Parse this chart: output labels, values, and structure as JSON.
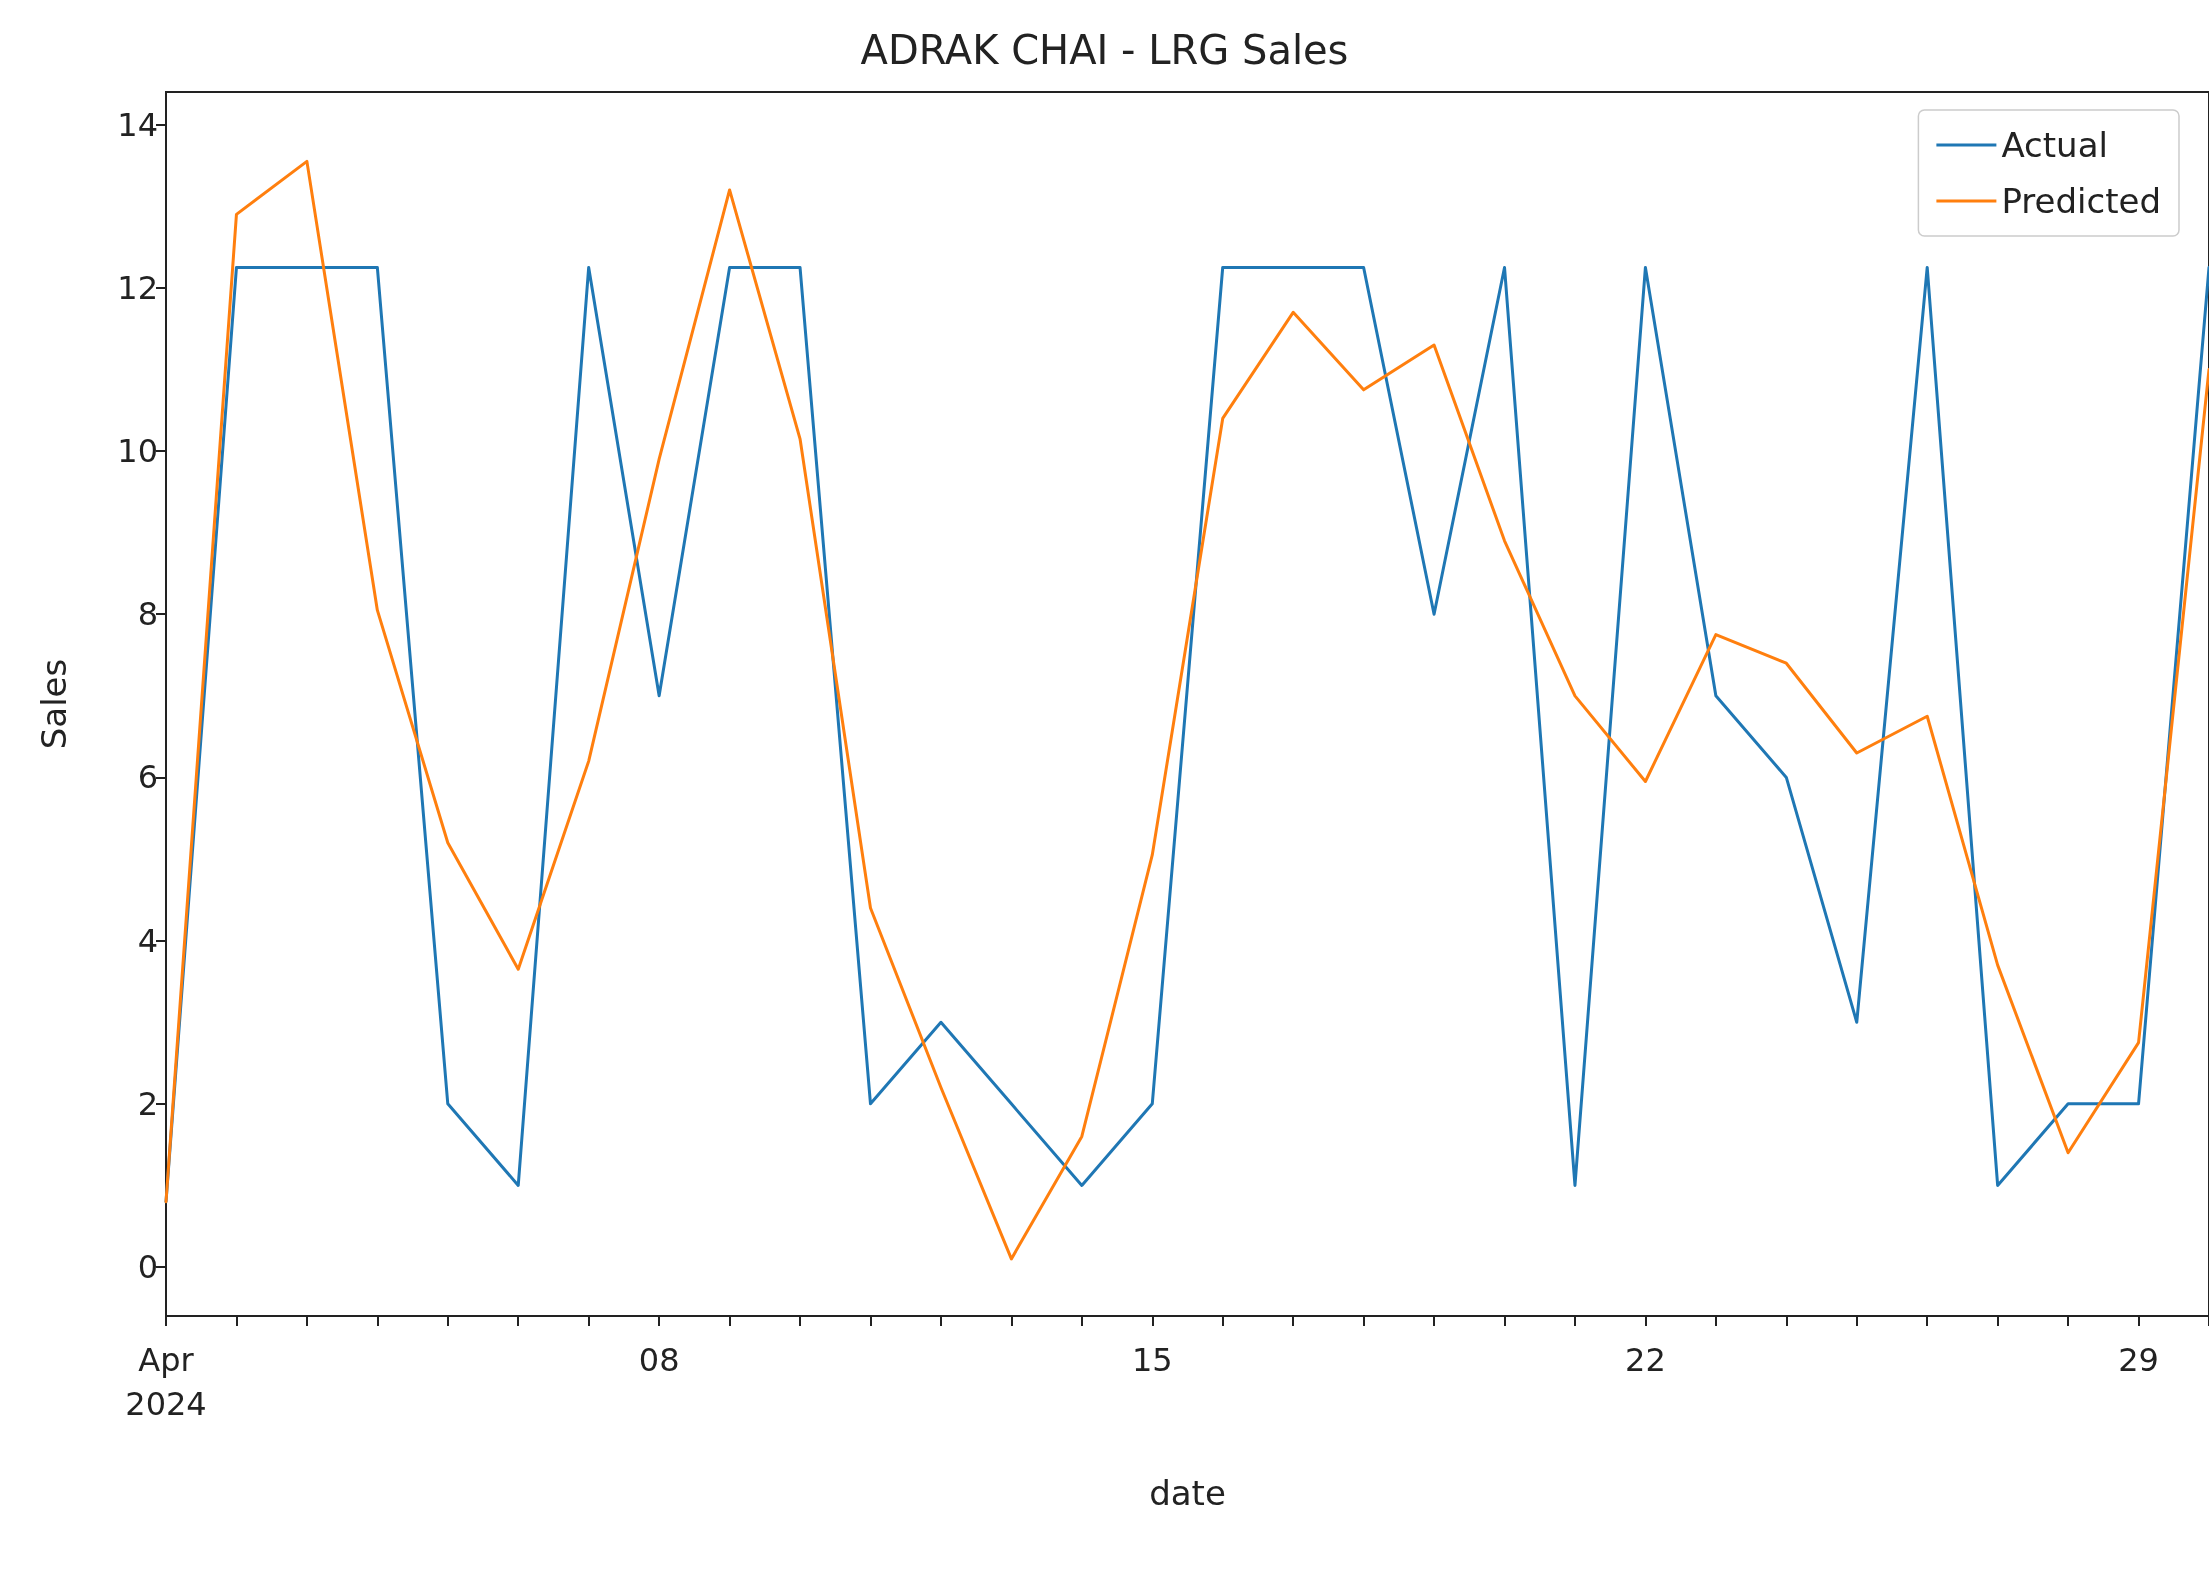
{
  "chart_data": {
    "type": "line",
    "title": "ADRAK CHAI - LRG Sales",
    "xlabel": "date",
    "ylabel": "Sales",
    "x": [
      "2024-04-01",
      "2024-04-02",
      "2024-04-03",
      "2024-04-04",
      "2024-04-05",
      "2024-04-06",
      "2024-04-07",
      "2024-04-08",
      "2024-04-09",
      "2024-04-10",
      "2024-04-11",
      "2024-04-12",
      "2024-04-13",
      "2024-04-14",
      "2024-04-15",
      "2024-04-16",
      "2024-04-17",
      "2024-04-18",
      "2024-04-19",
      "2024-04-20",
      "2024-04-21",
      "2024-04-22",
      "2024-04-23",
      "2024-04-24",
      "2024-04-25",
      "2024-04-26",
      "2024-04-27",
      "2024-04-28",
      "2024-04-29",
      "2024-04-30"
    ],
    "series": [
      {
        "name": "Actual",
        "color": "#1f77b4",
        "values": [
          0.8,
          12.25,
          12.25,
          12.25,
          2,
          1,
          12.25,
          7,
          12.25,
          12.25,
          2,
          3,
          2,
          1,
          2,
          12.25,
          12.25,
          12.25,
          8,
          12.25,
          1,
          12.25,
          7,
          6,
          3,
          12.25,
          1,
          2,
          2,
          12.25
        ]
      },
      {
        "name": "Predicted",
        "color": "#ff7f0e",
        "values": [
          0.8,
          12.9,
          13.55,
          8.05,
          5.2,
          3.65,
          6.2,
          9.9,
          13.2,
          10.15,
          4.4,
          2.2,
          0.1,
          1.6,
          5.05,
          10.4,
          11.7,
          10.75,
          11.3,
          8.9,
          7.0,
          5.95,
          7.75,
          7.4,
          6.3,
          6.75,
          3.7,
          1.4,
          2.75,
          11
        ]
      }
    ],
    "xlim": [
      "2024-04-01",
      "2024-04-30"
    ],
    "xticks": [
      {
        "value": "2024-04-01",
        "label": "Apr\n2024"
      },
      {
        "value": "2024-04-02",
        "label": null
      },
      {
        "value": "2024-04-03",
        "label": null
      },
      {
        "value": "2024-04-04",
        "label": null
      },
      {
        "value": "2024-04-05",
        "label": null
      },
      {
        "value": "2024-04-06",
        "label": null
      },
      {
        "value": "2024-04-07",
        "label": null
      },
      {
        "value": "2024-04-08",
        "label": "08"
      },
      {
        "value": "2024-04-09",
        "label": null
      },
      {
        "value": "2024-04-10",
        "label": null
      },
      {
        "value": "2024-04-11",
        "label": null
      },
      {
        "value": "2024-04-12",
        "label": null
      },
      {
        "value": "2024-04-13",
        "label": null
      },
      {
        "value": "2024-04-14",
        "label": null
      },
      {
        "value": "2024-04-15",
        "label": "15"
      },
      {
        "value": "2024-04-16",
        "label": null
      },
      {
        "value": "2024-04-17",
        "label": null
      },
      {
        "value": "2024-04-18",
        "label": null
      },
      {
        "value": "2024-04-19",
        "label": null
      },
      {
        "value": "2024-04-20",
        "label": null
      },
      {
        "value": "2024-04-21",
        "label": null
      },
      {
        "value": "2024-04-22",
        "label": "22"
      },
      {
        "value": "2024-04-23",
        "label": null
      },
      {
        "value": "2024-04-24",
        "label": null
      },
      {
        "value": "2024-04-25",
        "label": null
      },
      {
        "value": "2024-04-26",
        "label": null
      },
      {
        "value": "2024-04-27",
        "label": null
      },
      {
        "value": "2024-04-28",
        "label": null
      },
      {
        "value": "2024-04-29",
        "label": "29"
      },
      {
        "value": "2024-04-30",
        "label": null
      }
    ],
    "ylim": [
      -0.6,
      14.4
    ],
    "yticks": [
      0,
      2,
      4,
      6,
      8,
      10,
      12,
      14
    ],
    "grid": false,
    "legend": "top right",
    "marker": "none",
    "line_style": "solid"
  }
}
